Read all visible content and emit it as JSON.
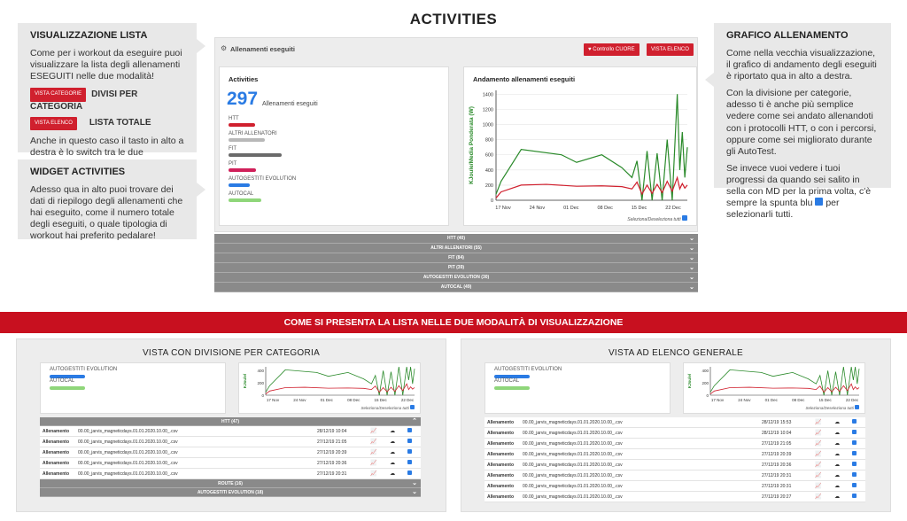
{
  "title": "ACTIVITIES",
  "callout_list": {
    "heading": "VISUALIZZAZIONE LISTA",
    "text": "Come per i workout da eseguire puoi visualizzare la lista degli allenamenti ESEGUITI nelle due modalità!",
    "btn1": "VISTA CATEGORIE",
    "cap1": "DIVISI PER CATEGORIA",
    "btn2": "VISTA ELENCO",
    "cap2": "LISTA TOTALE",
    "text2": "Anche in questo caso il tasto in alto a destra è lo switch tra le due visualizzazioni."
  },
  "callout_widget": {
    "heading": "WIDGET ACTIVITIES",
    "text": "Adesso qua in alto puoi trovare dei dati di riepilogo degli allenamenti che hai eseguito, come il numero totale degli eseguiti, o quale tipologia di workout hai preferito pedalare!"
  },
  "callout_chart": {
    "heading": "GRAFICO ALLENAMENTO",
    "p1": "Come nella vecchia visualizzazione, il grafico di andamento degli eseguiti è riportato qua in alto a destra.",
    "p2": "Con la divisione per categorie, adesso ti è anche più semplice vedere come sei andato allenandoti con i protocolli HTT, o con i percorsi, oppure come sei migliorato durante gli AutoTest.",
    "p3a": "Se invece vuoi vedere i tuoi progressi da quando sei salito in sella con MD per la prima volta, c'è sempre la spunta blu",
    "p3b": "per selezionarli tutti."
  },
  "main": {
    "header": "Allenamenti eseguiti",
    "btn_cuore": "Controllo CUORE",
    "btn_elenco": "VISTA ELENCO",
    "widget_title": "Activities",
    "count": "297",
    "count_label": "Allenamenti eseguiti",
    "chart_title": "Andamento allenamenti eseguiti",
    "select_all": "Seleziona/Deseleziona tutti",
    "categories": [
      {
        "label": "HTT",
        "color": "#d0202e",
        "frac": 0.5
      },
      {
        "label": "ALTRI ALLENATORI",
        "color": "#b8b8b8",
        "frac": 0.68
      },
      {
        "label": "FIT",
        "color": "#6a6a6a",
        "frac": 1.0
      },
      {
        "label": "PIT",
        "color": "#d0205a",
        "frac": 0.52
      },
      {
        "label": "AUTOGESTITI EVOLUTION",
        "color": "#2a7be4",
        "frac": 0.4
      },
      {
        "label": "AUTOCAL",
        "color": "#8fd67a",
        "frac": 0.62
      }
    ],
    "accordion": [
      "HTT (40)",
      "ALTRI ALLENATORI (55)",
      "FIT (84)",
      "PIT (39)",
      "AUTOGESTITI EVOLUTION (30)",
      "AUTOCAL (49)"
    ]
  },
  "chart_data": {
    "type": "line",
    "title": "Andamento allenamenti eseguiti",
    "ylabel": "KJoule/Media Ponderata (W)",
    "xlabel": "",
    "x_ticks": [
      "17 Nov",
      "24 Nov",
      "01 Dec",
      "08 Dec",
      "15 Dec",
      "22 Dec"
    ],
    "y_ticks": [
      0,
      200,
      400,
      600,
      800,
      1000,
      1200,
      1400
    ],
    "ylim": [
      0,
      1450
    ],
    "series": [
      {
        "name": "KJoule",
        "color": "#2a8a2a",
        "values": [
          [
            0,
            80
          ],
          [
            1,
            250
          ],
          [
            5,
            670
          ],
          [
            13,
            600
          ],
          [
            16,
            500
          ],
          [
            21,
            600
          ],
          [
            25,
            430
          ],
          [
            27,
            300
          ],
          [
            28,
            520
          ],
          [
            29,
            0
          ],
          [
            30,
            650
          ],
          [
            31,
            0
          ],
          [
            32,
            620
          ],
          [
            33,
            0
          ],
          [
            34,
            800
          ],
          [
            35,
            0
          ],
          [
            36,
            1400
          ],
          [
            36.5,
            400
          ],
          [
            37,
            900
          ],
          [
            37.5,
            300
          ],
          [
            38,
            700
          ]
        ]
      },
      {
        "name": "Media Ponderata (W)",
        "color": "#d0202e",
        "values": [
          [
            0,
            30
          ],
          [
            1,
            110
          ],
          [
            5,
            200
          ],
          [
            10,
            210
          ],
          [
            16,
            185
          ],
          [
            21,
            190
          ],
          [
            25,
            180
          ],
          [
            27,
            150
          ],
          [
            28,
            240
          ],
          [
            29,
            80
          ],
          [
            30,
            200
          ],
          [
            31,
            90
          ],
          [
            32,
            210
          ],
          [
            33,
            100
          ],
          [
            34,
            250
          ],
          [
            35,
            120
          ],
          [
            36,
            300
          ],
          [
            36.5,
            150
          ],
          [
            37,
            220
          ],
          [
            37.5,
            160
          ],
          [
            38,
            200
          ]
        ]
      }
    ],
    "x_range": [
      0,
      38
    ]
  },
  "banner": "COME SI PRESENTA LA LISTA NELLE DUE MODALITÀ DI VISUALIZZAZIONE",
  "panel_left": {
    "title": "VISTA CON DIVISIONE PER CATEGORIA",
    "legend": [
      "AUTOGESTITI EVOLUTION",
      "AUTOCAL"
    ],
    "x_ticks": [
      "17 Nov",
      "24 Nov",
      "01 Dec",
      "08 Dec",
      "15 Dec",
      "22 Dec"
    ],
    "y_ticks": [
      "400",
      "200",
      "0"
    ],
    "select_all": "Seleziona/Deseleziona tutti",
    "header": "HTT (47)",
    "rows": [
      {
        "type": "Allenamento",
        "name": "00.00_jarvis_magneticdays.01.01.2020.10.00_.csv",
        "date": "28/12/19 10:04"
      },
      {
        "type": "Allenamento",
        "name": "00.00_jarvis_magneticdays.01.01.2020.10.00_.csv",
        "date": "27/12/19 21:05"
      },
      {
        "type": "Allenamento",
        "name": "00.00_jarvis_magneticdays.01.01.2020.10.00_.csv",
        "date": "27/12/19 20:39"
      },
      {
        "type": "Allenamento",
        "name": "00.00_jarvis_magneticdays.01.01.2020.10.00_.csv",
        "date": "27/12/19 20:36"
      },
      {
        "type": "Allenamento",
        "name": "00.00_jarvis_magneticdays.01.01.2020.10.00_.csv",
        "date": "27/12/19 20:31"
      }
    ],
    "footer1": "ROUTE (16)",
    "footer2": "AUTOGESTITI EVOLUTION (18)"
  },
  "panel_right": {
    "title": "VISTA AD ELENCO GENERALE",
    "legend": [
      "AUTOGESTITI EVOLUTION",
      "AUTOCAL"
    ],
    "x_ticks": [
      "17 Nov",
      "24 Nov",
      "01 Dec",
      "08 Dec",
      "15 Dec",
      "22 Dec"
    ],
    "y_ticks": [
      "400",
      "200",
      "0"
    ],
    "select_all": "Seleziona/Deseleziona tutti",
    "rows": [
      {
        "type": "Allenamento",
        "name": "00.00_jarvis_magneticdays.01.01.2020.10.00_.csv",
        "date": "28/12/19 15:53"
      },
      {
        "type": "Allenamento",
        "name": "00.00_jarvis_magneticdays.01.01.2020.10.00_.csv",
        "date": "28/12/19 10:04"
      },
      {
        "type": "Allenamento",
        "name": "00.00_jarvis_magneticdays.01.01.2020.10.00_.csv",
        "date": "27/12/19 21:05"
      },
      {
        "type": "Allenamento",
        "name": "00.00_jarvis_magneticdays.01.01.2020.10.00_.csv",
        "date": "27/12/19 20:39"
      },
      {
        "type": "Allenamento",
        "name": "00.00_jarvis_magneticdays.01.01.2020.10.00_.csv",
        "date": "27/12/19 20:36"
      },
      {
        "type": "Allenamento",
        "name": "00.00_jarvis_magneticdays.01.01.2020.10.00_.csv",
        "date": "27/12/19 20:31"
      },
      {
        "type": "Allenamento",
        "name": "00.00_jarvis_magneticdays.01.01.2020.10.00_.csv",
        "date": "27/12/19 20:31"
      },
      {
        "type": "Allenamento",
        "name": "00.00_jarvis_magneticdays.01.01.2020.10.00_.csv",
        "date": "27/12/19 20:27"
      }
    ]
  }
}
